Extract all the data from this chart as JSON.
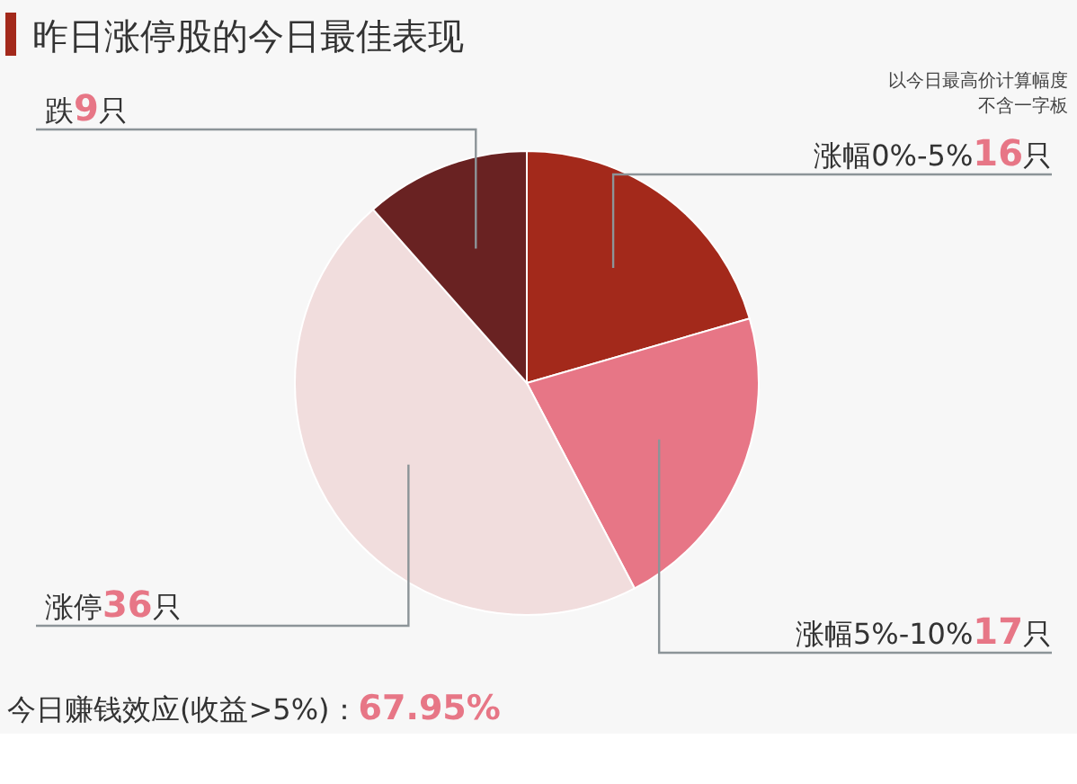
{
  "chart_data": {
    "type": "pie",
    "title": "昨日涨停股的今日最佳表现",
    "categories": [
      "涨幅0%-5%",
      "涨幅5%-10%",
      "涨停",
      "跌"
    ],
    "values": [
      16,
      17,
      36,
      9
    ],
    "value_labels": [
      "16只",
      "17只",
      "36只",
      "9只"
    ],
    "colors": [
      "#a3291b",
      "#e77686",
      "#f1dddd",
      "#692222"
    ],
    "annotations": [
      "以今日最高价计算幅度",
      "不含一字板",
      "今日赚钱效应(收益>5%)：67.95%"
    ]
  }
}
